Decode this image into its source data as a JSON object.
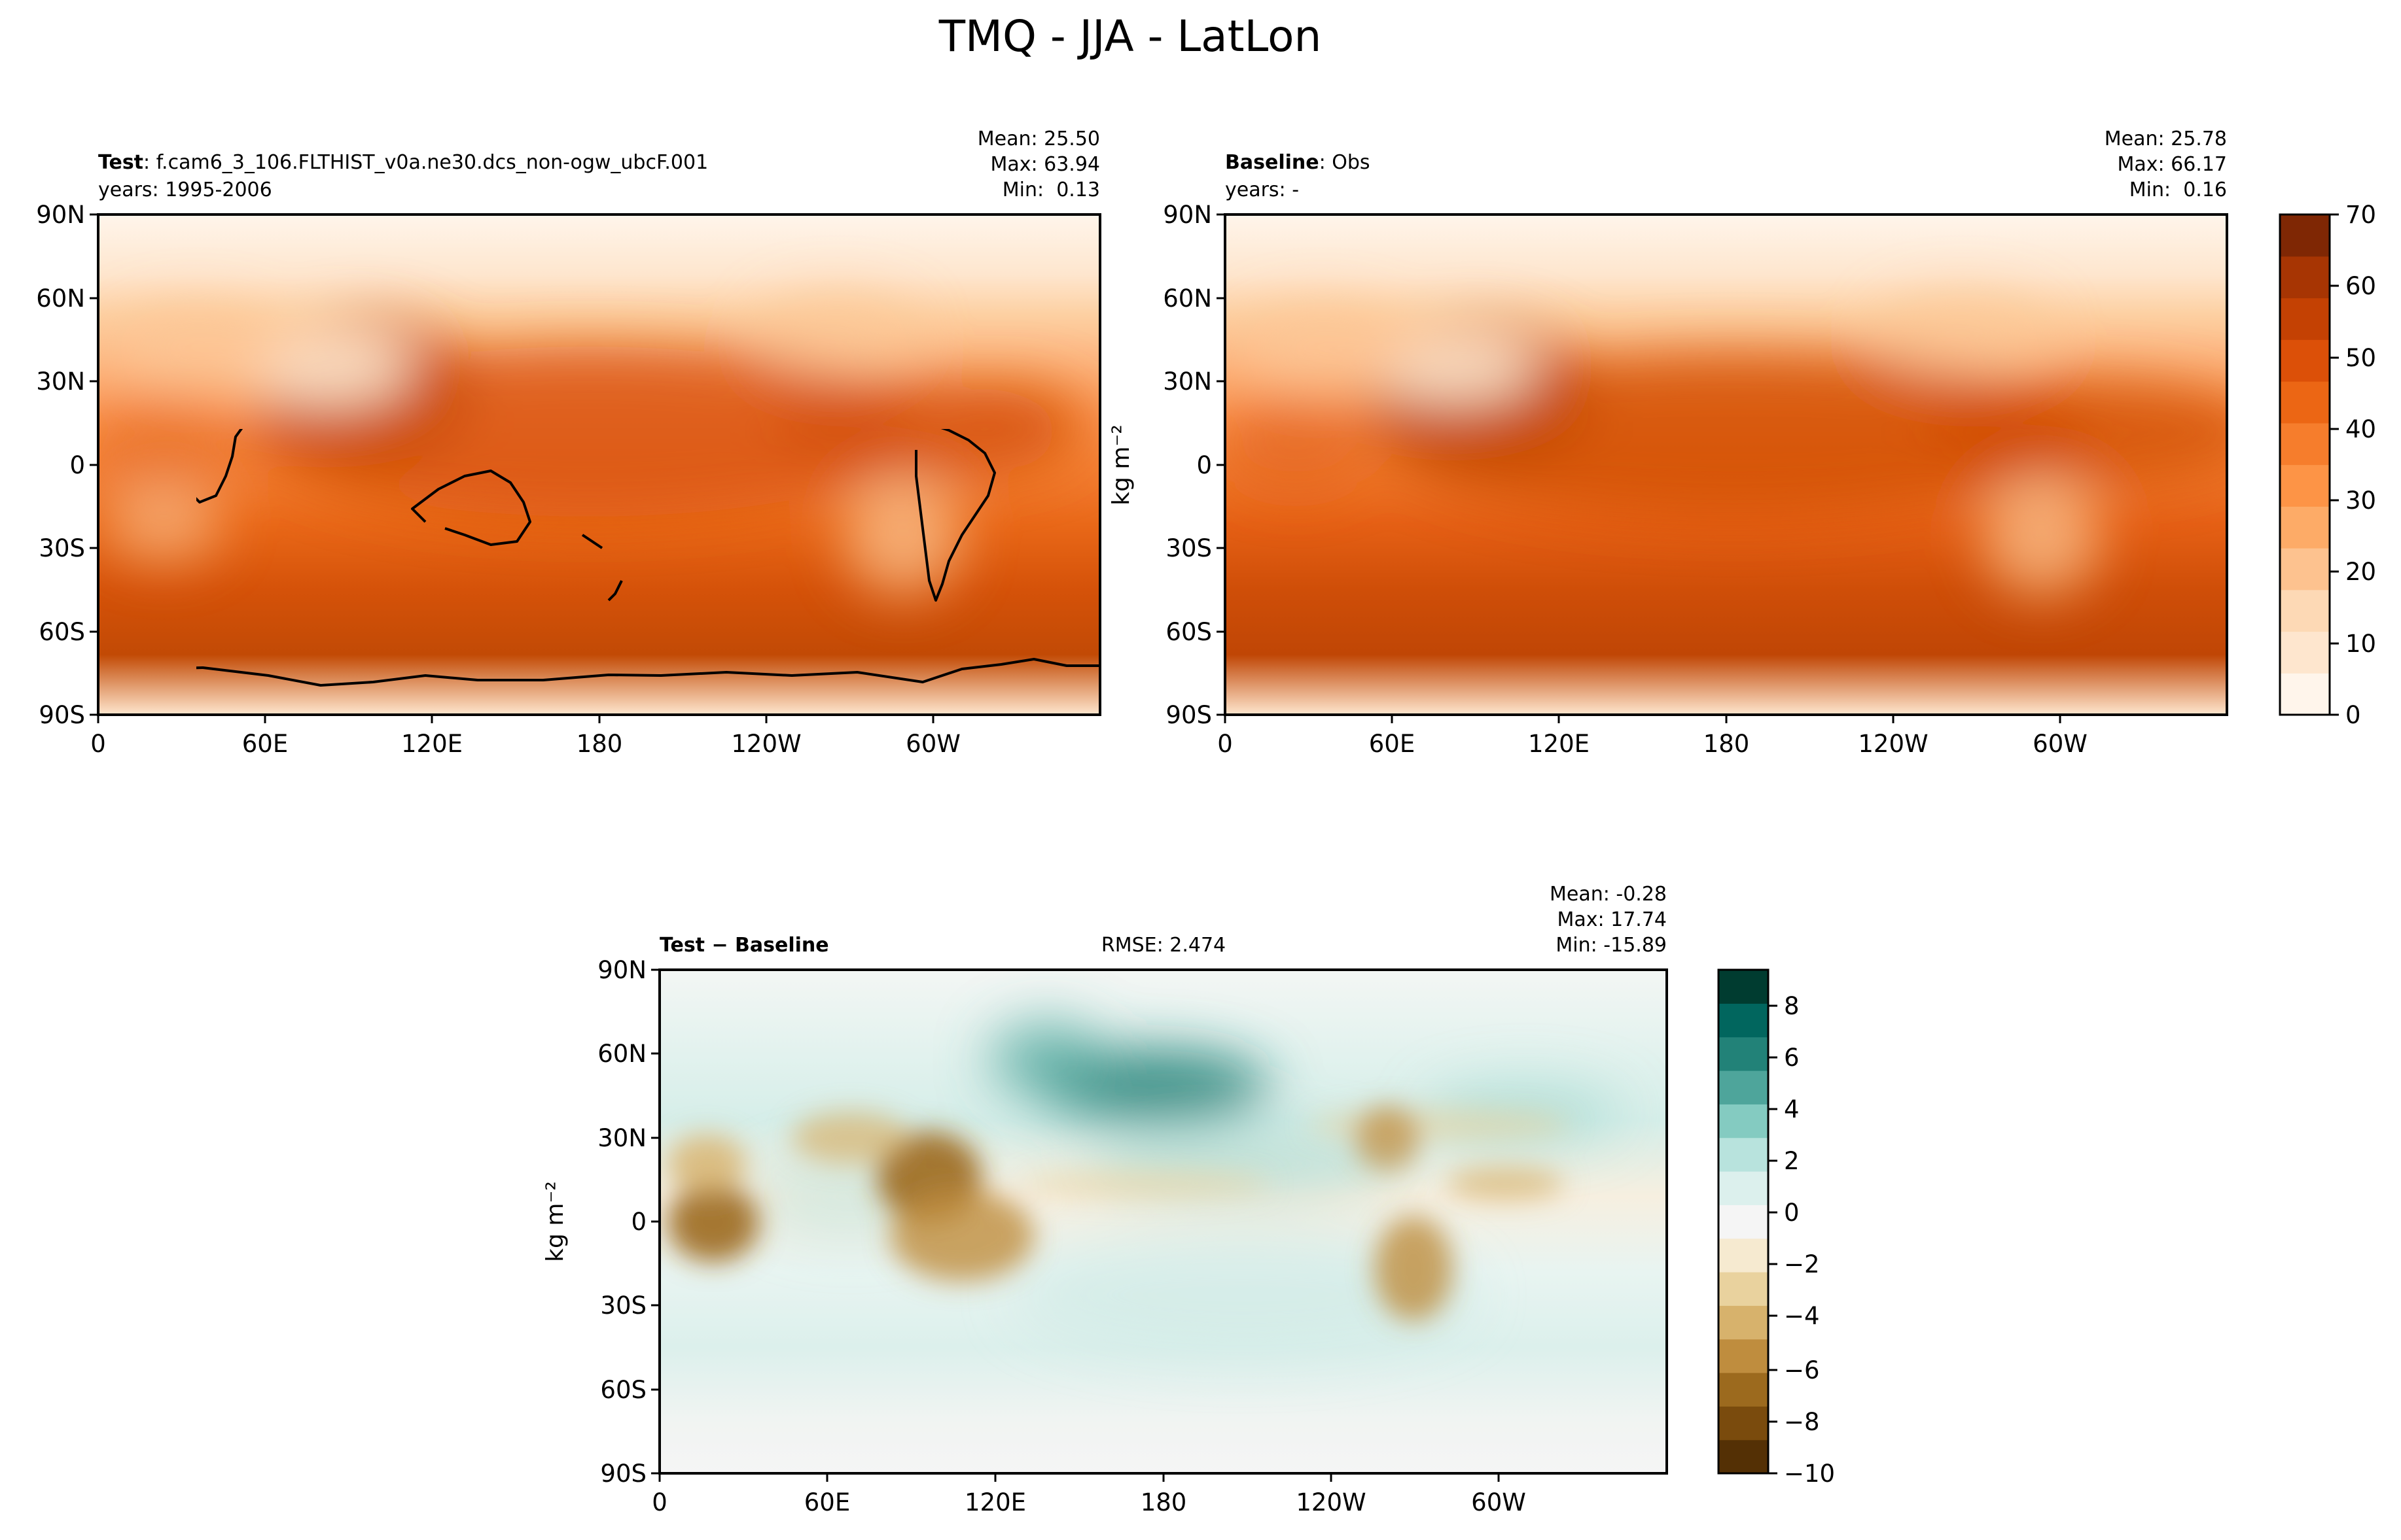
{
  "figure_title": "TMQ - JJA - LatLon",
  "panel_axes": {
    "lat_ticks": [
      "90N",
      "60N",
      "30N",
      "0",
      "30S",
      "60S",
      "90S"
    ],
    "lon_ticks": [
      "0",
      "60E",
      "120E",
      "180",
      "120W",
      "60W"
    ]
  },
  "panels": {
    "test": {
      "label_bold": "Test",
      "label_rest": ": f.cam6_3_106.FLTHIST_v0a.ne30.dcs_non-ogw_ubcF.001",
      "years": "years: 1995-2006",
      "mean": "Mean: 25.50",
      "max": "Max: 63.94",
      "min": "Min:  0.13"
    },
    "baseline": {
      "label_bold": "Baseline",
      "label_rest": ": Obs",
      "years": "years: -",
      "mean": "Mean: 25.78",
      "max": "Max: 66.17",
      "min": "Min:  0.16",
      "ylabel": "kg m⁻²"
    },
    "diff": {
      "label": "Test − Baseline",
      "rmse": "RMSE: 2.474",
      "mean": "Mean: -0.28",
      "max": "Max: 17.74",
      "min": "Min: -15.89",
      "ylabel": "kg m⁻²"
    }
  },
  "colorbars": {
    "main": {
      "ticks": [
        "70",
        "60",
        "50",
        "40",
        "30",
        "20",
        "10",
        "0"
      ],
      "colors": [
        "#fff5eb",
        "#fee6ce",
        "#fdd9b5",
        "#fdc28f",
        "#fdab67",
        "#fd9446",
        "#f67d2c",
        "#ec6614",
        "#dc5008",
        "#c44103",
        "#a73503",
        "#7f2704"
      ]
    },
    "diff": {
      "ticks": [
        "8",
        "6",
        "4",
        "2",
        "0",
        "−2",
        "−4",
        "−6",
        "−8",
        "−10"
      ],
      "colors": [
        "#543005",
        "#7a4b0d",
        "#9c6a1e",
        "#bf8d3e",
        "#d7b26c",
        "#e9d29e",
        "#f6ead0",
        "#f5f5f5",
        "#dcf0ed",
        "#b8e3dd",
        "#84cbc1",
        "#4ea59b",
        "#228278",
        "#01665e",
        "#003c30"
      ]
    }
  },
  "chart_data": [
    {
      "type": "heatmap",
      "title": "Test: f.cam6_3_106.FLTHIST_v0a.ne30.dcs_non-ogw_ubcF.001",
      "subtitle": "years: 1995-2006",
      "stats": {
        "mean": 25.5,
        "max": 63.94,
        "min": 0.13
      },
      "xlabel": "",
      "ylabel": "",
      "x_ticks": [
        "0",
        "60E",
        "120E",
        "180",
        "120W",
        "60W"
      ],
      "y_ticks": [
        "90N",
        "60N",
        "30N",
        "0",
        "30S",
        "60S",
        "90S"
      ],
      "colorbar_range": [
        0,
        70
      ],
      "colorbar_ticks": [
        0,
        10,
        20,
        30,
        40,
        50,
        60,
        70
      ]
    },
    {
      "type": "heatmap",
      "title": "Baseline: Obs",
      "subtitle": "years: -",
      "stats": {
        "mean": 25.78,
        "max": 66.17,
        "min": 0.16
      },
      "xlabel": "",
      "ylabel": "kg m⁻²",
      "x_ticks": [
        "0",
        "60E",
        "120E",
        "180",
        "120W",
        "60W"
      ],
      "y_ticks": [
        "90N",
        "60N",
        "30N",
        "0",
        "30S",
        "60S",
        "90S"
      ],
      "colorbar_range": [
        0,
        70
      ],
      "colorbar_ticks": [
        0,
        10,
        20,
        30,
        40,
        50,
        60,
        70
      ]
    },
    {
      "type": "heatmap",
      "title": "Test − Baseline",
      "subtitle": "RMSE: 2.474",
      "stats": {
        "mean": -0.28,
        "max": 17.74,
        "min": -15.89,
        "rmse": 2.474
      },
      "xlabel": "",
      "ylabel": "kg m⁻²",
      "x_ticks": [
        "0",
        "60E",
        "120E",
        "180",
        "120W",
        "60W"
      ],
      "y_ticks": [
        "90N",
        "60N",
        "30N",
        "0",
        "30S",
        "60S",
        "90S"
      ],
      "colorbar_range": [
        -10,
        9.5
      ],
      "colorbar_ticks": [
        -10,
        -8,
        -6,
        -4,
        -2,
        0,
        2,
        4,
        6,
        8
      ]
    }
  ]
}
